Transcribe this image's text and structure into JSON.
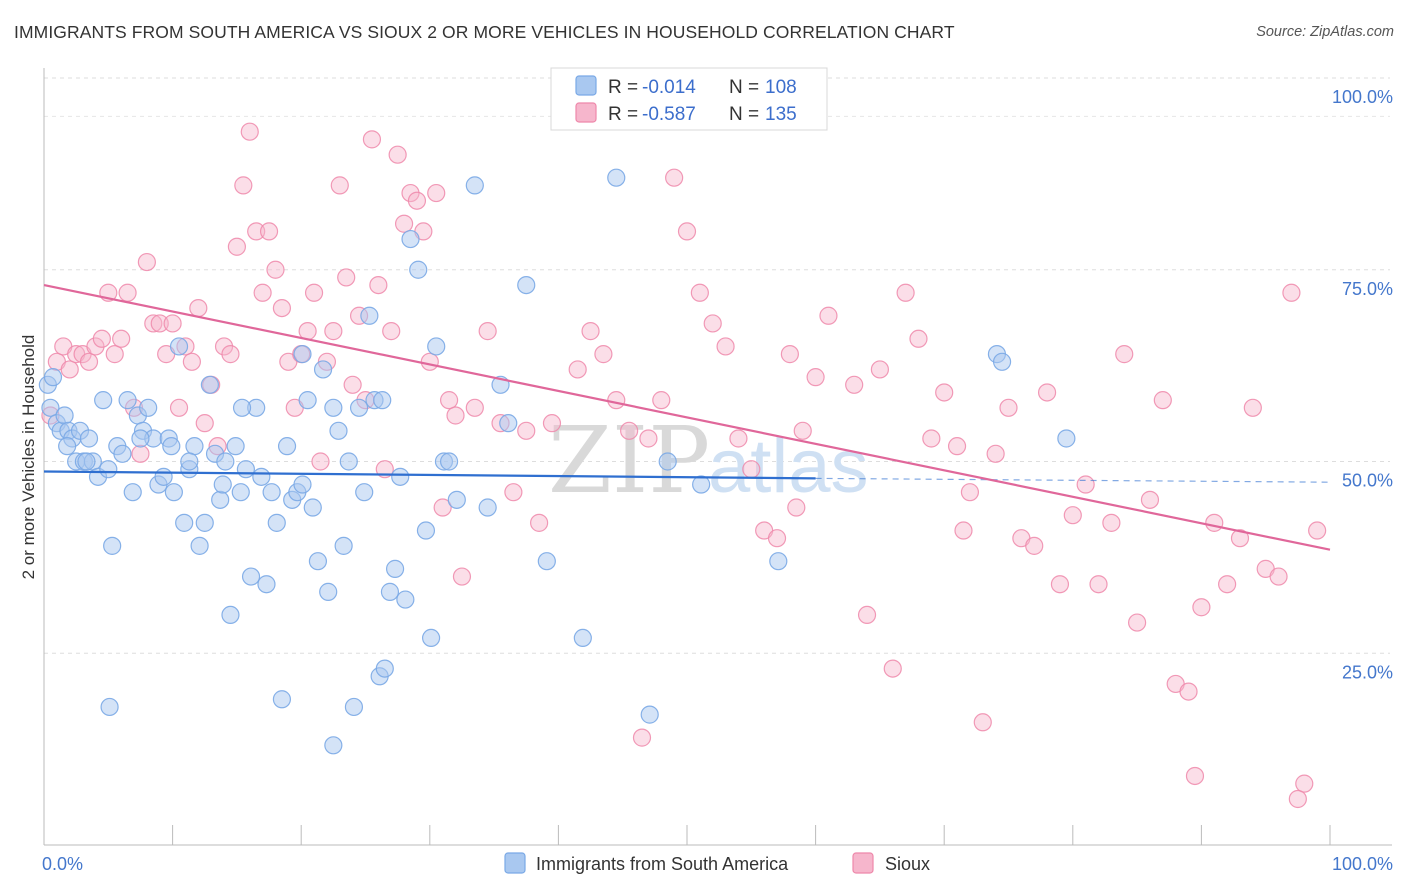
{
  "header": {
    "title": "IMMIGRANTS FROM SOUTH AMERICA VS SIOUX 2 OR MORE VEHICLES IN HOUSEHOLD CORRELATION CHART",
    "source": "Source: ZipAtlas.com"
  },
  "watermark": {
    "zip": "ZIP",
    "atlas": "atlas"
  },
  "legend_box": {
    "rows": [
      {
        "r_label": "R = ",
        "r_value": "-0.014",
        "n_label": "N = ",
        "n_value": "108",
        "color": "#a9c8f0"
      },
      {
        "r_label": "R = ",
        "r_value": "-0.587",
        "n_label": "N = ",
        "n_value": "135",
        "color": "#f6b6cc"
      }
    ]
  },
  "bottom_legend": {
    "items": [
      {
        "label": "Immigrants from South America",
        "color": "#a9c8f0"
      },
      {
        "label": "Sioux",
        "color": "#f6b6cc"
      }
    ]
  },
  "chart_data": {
    "type": "scatter",
    "title": "IMMIGRANTS FROM SOUTH AMERICA VS SIOUX 2 OR MORE VEHICLES IN HOUSEHOLD CORRELATION CHART",
    "ylabel": "2 or more Vehicles in Household",
    "xlabel": "",
    "xlim": [
      0,
      100
    ],
    "ylim": [
      0,
      100
    ],
    "x_tick_labels": [
      "0.0%",
      "100.0%"
    ],
    "y_tick_labels": [
      "25.0%",
      "50.0%",
      "75.0%",
      "100.0%"
    ],
    "y_ticks": [
      25,
      50,
      75,
      100
    ],
    "grid": true,
    "legend_position": "top-center",
    "series": [
      {
        "name": "Immigrants from South America",
        "color": "#7aa9e6",
        "fill": "#a9c8f0",
        "line_color": "#2f6fd0",
        "trend": {
          "x0": 0,
          "y0": 48.7,
          "x1": 60,
          "y1": 47.8,
          "dash_to": 100,
          "dash_y": 47.3
        },
        "points": [
          [
            0.3,
            60
          ],
          [
            0.5,
            57
          ],
          [
            0.7,
            61
          ],
          [
            1,
            55
          ],
          [
            1.3,
            54
          ],
          [
            1.6,
            56
          ],
          [
            1.9,
            54
          ],
          [
            2.2,
            53
          ],
          [
            2.5,
            50
          ],
          [
            2.8,
            54
          ],
          [
            3.1,
            50
          ],
          [
            3.5,
            53
          ],
          [
            3.8,
            50
          ],
          [
            4.2,
            48
          ],
          [
            4.6,
            58
          ],
          [
            5,
            49
          ],
          [
            5.3,
            39
          ],
          [
            5.7,
            52
          ],
          [
            6.1,
            51
          ],
          [
            6.5,
            58
          ],
          [
            6.9,
            46
          ],
          [
            7.3,
            56
          ],
          [
            7.7,
            54
          ],
          [
            8.1,
            57
          ],
          [
            8.5,
            53
          ],
          [
            8.9,
            47
          ],
          [
            9.3,
            48
          ],
          [
            9.7,
            53
          ],
          [
            10.1,
            46
          ],
          [
            10.5,
            65
          ],
          [
            10.9,
            42
          ],
          [
            11.3,
            49
          ],
          [
            11.7,
            52
          ],
          [
            12.1,
            39
          ],
          [
            12.5,
            42
          ],
          [
            12.9,
            60
          ],
          [
            13.3,
            51
          ],
          [
            13.7,
            45
          ],
          [
            14.1,
            50
          ],
          [
            14.5,
            30
          ],
          [
            14.9,
            52
          ],
          [
            15.3,
            46
          ],
          [
            15.7,
            49
          ],
          [
            16.1,
            35
          ],
          [
            16.5,
            57
          ],
          [
            16.9,
            48
          ],
          [
            17.3,
            34
          ],
          [
            17.7,
            46
          ],
          [
            18.1,
            42
          ],
          [
            18.5,
            19
          ],
          [
            18.9,
            52
          ],
          [
            19.3,
            45
          ],
          [
            19.7,
            46
          ],
          [
            20.1,
            64
          ],
          [
            20.5,
            58
          ],
          [
            20.9,
            44
          ],
          [
            21.3,
            37
          ],
          [
            21.7,
            62
          ],
          [
            22.1,
            33
          ],
          [
            22.5,
            57
          ],
          [
            22.9,
            54
          ],
          [
            23.3,
            39
          ],
          [
            23.7,
            50
          ],
          [
            24.1,
            18
          ],
          [
            24.5,
            57
          ],
          [
            24.9,
            46
          ],
          [
            25.3,
            69
          ],
          [
            25.7,
            58
          ],
          [
            26.1,
            22
          ],
          [
            26.5,
            23
          ],
          [
            26.9,
            33
          ],
          [
            27.3,
            36
          ],
          [
            27.7,
            48
          ],
          [
            28.1,
            32
          ],
          [
            28.5,
            79
          ],
          [
            29.1,
            75
          ],
          [
            29.7,
            41
          ],
          [
            30.1,
            27
          ],
          [
            30.5,
            65
          ],
          [
            31.1,
            50
          ],
          [
            31.5,
            50
          ],
          [
            32.1,
            45
          ],
          [
            33.5,
            86
          ],
          [
            34.5,
            44
          ],
          [
            35.5,
            60
          ],
          [
            36.1,
            55
          ],
          [
            37.5,
            73
          ],
          [
            39.1,
            37
          ],
          [
            41.9,
            27
          ],
          [
            44.5,
            87
          ],
          [
            47.1,
            17
          ],
          [
            48.5,
            50
          ],
          [
            51.1,
            47
          ],
          [
            57.1,
            37
          ],
          [
            74.1,
            64
          ],
          [
            74.5,
            63
          ],
          [
            79.5,
            53
          ],
          [
            20.1,
            47
          ],
          [
            5.1,
            18
          ],
          [
            22.5,
            13
          ],
          [
            11.3,
            50
          ],
          [
            7.5,
            53
          ],
          [
            1.8,
            52
          ],
          [
            15.4,
            57
          ],
          [
            3.3,
            50
          ],
          [
            9.9,
            52
          ],
          [
            26.3,
            58
          ],
          [
            13.9,
            47
          ]
        ]
      },
      {
        "name": "Sioux",
        "color": "#ee88aa",
        "fill": "#f6b6cc",
        "line_color": "#e0679a",
        "trend": {
          "x0": 0,
          "y0": 73,
          "x1": 100,
          "y1": 38.5
        },
        "points": [
          [
            0.5,
            56
          ],
          [
            1,
            63
          ],
          [
            1.5,
            65
          ],
          [
            2,
            62
          ],
          [
            2.5,
            64
          ],
          [
            3,
            64
          ],
          [
            3.5,
            63
          ],
          [
            4,
            65
          ],
          [
            4.5,
            66
          ],
          [
            5,
            72
          ],
          [
            5.5,
            64
          ],
          [
            6,
            66
          ],
          [
            6.5,
            72
          ],
          [
            7,
            57
          ],
          [
            7.5,
            51
          ],
          [
            8,
            76
          ],
          [
            8.5,
            68
          ],
          [
            9,
            68
          ],
          [
            9.5,
            64
          ],
          [
            10,
            68
          ],
          [
            10.5,
            57
          ],
          [
            11,
            65
          ],
          [
            11.5,
            63
          ],
          [
            12,
            70
          ],
          [
            12.5,
            55
          ],
          [
            13,
            60
          ],
          [
            13.5,
            52
          ],
          [
            14,
            65
          ],
          [
            14.5,
            64
          ],
          [
            15,
            78
          ],
          [
            15.5,
            86
          ],
          [
            16,
            93
          ],
          [
            16.5,
            80
          ],
          [
            17,
            72
          ],
          [
            17.5,
            80
          ],
          [
            18,
            75
          ],
          [
            18.5,
            70
          ],
          [
            19,
            63
          ],
          [
            19.5,
            57
          ],
          [
            20,
            64
          ],
          [
            20.5,
            67
          ],
          [
            21,
            72
          ],
          [
            21.5,
            50
          ],
          [
            22,
            63
          ],
          [
            22.5,
            67
          ],
          [
            23,
            86
          ],
          [
            23.5,
            74
          ],
          [
            24,
            60
          ],
          [
            24.5,
            69
          ],
          [
            25,
            58
          ],
          [
            25.5,
            92
          ],
          [
            26,
            73
          ],
          [
            26.5,
            49
          ],
          [
            27,
            67
          ],
          [
            27.5,
            90
          ],
          [
            28,
            81
          ],
          [
            28.5,
            85
          ],
          [
            29,
            84
          ],
          [
            29.5,
            80
          ],
          [
            30,
            63
          ],
          [
            30.5,
            85
          ],
          [
            31,
            44
          ],
          [
            31.5,
            58
          ],
          [
            32,
            56
          ],
          [
            32.5,
            35
          ],
          [
            33.5,
            57
          ],
          [
            34.5,
            67
          ],
          [
            35.5,
            55
          ],
          [
            36.5,
            46
          ],
          [
            37.5,
            54
          ],
          [
            38.5,
            42
          ],
          [
            39.5,
            55
          ],
          [
            41.5,
            62
          ],
          [
            42.5,
            67
          ],
          [
            43.5,
            64
          ],
          [
            44.5,
            58
          ],
          [
            45.5,
            54
          ],
          [
            47,
            53
          ],
          [
            48,
            58
          ],
          [
            49,
            87
          ],
          [
            50,
            80
          ],
          [
            51,
            72
          ],
          [
            52,
            68
          ],
          [
            53,
            65
          ],
          [
            54,
            53
          ],
          [
            55,
            49
          ],
          [
            56,
            41
          ],
          [
            57,
            40
          ],
          [
            58,
            64
          ],
          [
            59,
            54
          ],
          [
            60,
            61
          ],
          [
            61,
            69
          ],
          [
            63,
            60
          ],
          [
            64,
            30
          ],
          [
            65,
            62
          ],
          [
            66,
            23
          ],
          [
            67,
            72
          ],
          [
            68,
            66
          ],
          [
            69,
            53
          ],
          [
            70,
            59
          ],
          [
            71,
            52
          ],
          [
            72,
            46
          ],
          [
            73,
            16
          ],
          [
            74,
            51
          ],
          [
            75,
            57
          ],
          [
            76,
            40
          ],
          [
            77,
            39
          ],
          [
            78,
            59
          ],
          [
            79,
            34
          ],
          [
            80,
            43
          ],
          [
            81,
            47
          ],
          [
            82,
            34
          ],
          [
            83,
            42
          ],
          [
            84,
            64
          ],
          [
            85,
            29
          ],
          [
            86,
            45
          ],
          [
            87,
            58
          ],
          [
            88,
            21
          ],
          [
            89,
            20
          ],
          [
            90,
            31
          ],
          [
            91,
            42
          ],
          [
            92,
            34
          ],
          [
            93,
            40
          ],
          [
            94,
            57
          ],
          [
            95,
            36
          ],
          [
            96,
            35
          ],
          [
            97,
            72
          ],
          [
            98,
            8
          ],
          [
            99,
            41
          ],
          [
            97.5,
            6
          ],
          [
            89.5,
            9
          ],
          [
            46.5,
            14
          ],
          [
            71.5,
            41
          ],
          [
            58.5,
            44
          ]
        ]
      }
    ]
  }
}
